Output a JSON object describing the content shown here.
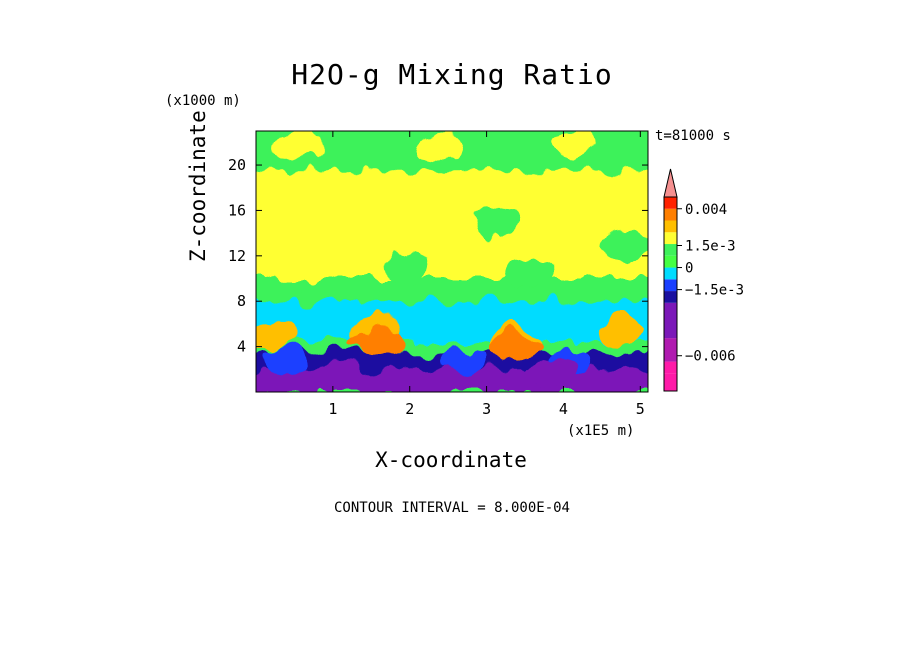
{
  "chart_data": {
    "type": "heatmap",
    "title": "H2O-g Mixing Ratio",
    "xlabel": "X-coordinate",
    "ylabel": "Z-coordinate",
    "x_unit": "(x1E5 m)",
    "y_unit": "(x1000 m)",
    "x_ticks": [
      1,
      2,
      3,
      4,
      5
    ],
    "y_ticks": [
      4,
      8,
      12,
      16,
      20
    ],
    "xlim": [
      0,
      5.1
    ],
    "ylim": [
      0,
      23
    ],
    "time_label": "t=81000 s",
    "contour_interval": "CONTOUR INTERVAL = 8.000E-04",
    "colorbar": {
      "labels": [
        "0.004",
        "1.5e-3",
        "0",
        "−1.5e-3",
        "−0.006"
      ],
      "label_values": [
        0.004,
        0.0015,
        0,
        -0.0015,
        -0.006
      ],
      "levels": [
        {
          "value": -0.0084,
          "color": "#ff1aa8"
        },
        {
          "value": -0.0072,
          "color": "#ff1aa8"
        },
        {
          "value": -0.0064,
          "color": "#b01ab0"
        },
        {
          "value": -0.0048,
          "color": "#7b18b8"
        },
        {
          "value": -0.0024,
          "color": "#1a10a0"
        },
        {
          "value": -0.0016,
          "color": "#1a40ff"
        },
        {
          "value": -0.0008,
          "color": "#00dcff"
        },
        {
          "value": 0.0,
          "color": "#44ff44"
        },
        {
          "value": 0.0008,
          "color": "#3ef25a"
        },
        {
          "value": 0.0016,
          "color": "#ffff33"
        },
        {
          "value": 0.0024,
          "color": "#ffbf00"
        },
        {
          "value": 0.0032,
          "color": "#ff7f00"
        },
        {
          "value": 0.004,
          "color": "#ff2200"
        },
        {
          "value": 0.0048,
          "color": "#f59090"
        }
      ]
    },
    "field_layers": [
      {
        "zmin": 18.0,
        "zmax": 23.0,
        "color": "#3ef25a"
      },
      {
        "zmin": 10.0,
        "zmax": 19.5,
        "color": "#ffff33"
      },
      {
        "zmin": 6.0,
        "zmax": 10.0,
        "color": "#3ef25a"
      },
      {
        "zmin": 4.5,
        "zmax": 8.0,
        "color": "#00dcff"
      },
      {
        "zmin": 1.5,
        "zmax": 3.5,
        "color": "#1a10a0"
      },
      {
        "zmin": 0.0,
        "zmax": 2.0,
        "color": "#7b18b8"
      }
    ],
    "features": [
      {
        "x": 0.6,
        "z": 21.8,
        "color": "#ffff33"
      },
      {
        "x": 2.4,
        "z": 21.6,
        "color": "#ffff33"
      },
      {
        "x": 4.2,
        "z": 21.8,
        "color": "#ffff33"
      },
      {
        "x": 0.3,
        "z": 9.0,
        "color": "#3ef25a"
      },
      {
        "x": 2.0,
        "z": 11.0,
        "color": "#3ef25a"
      },
      {
        "x": 3.6,
        "z": 10.5,
        "color": "#3ef25a"
      },
      {
        "x": 4.8,
        "z": 13.0,
        "color": "#3ef25a"
      },
      {
        "x": 3.1,
        "z": 15.0,
        "color": "#3ef25a"
      },
      {
        "x": 1.55,
        "z": 5.5,
        "color": "#ffbf00"
      },
      {
        "x": 1.6,
        "z": 4.4,
        "color": "#ff7f00"
      },
      {
        "x": 3.35,
        "z": 4.5,
        "color": "#ffbf00"
      },
      {
        "x": 3.35,
        "z": 4.0,
        "color": "#ff7f00"
      },
      {
        "x": 4.75,
        "z": 5.6,
        "color": "#ffbf00"
      },
      {
        "x": 0.2,
        "z": 5.0,
        "color": "#ffbf00"
      },
      {
        "x": 0.4,
        "z": 2.6,
        "color": "#1a40ff"
      },
      {
        "x": 2.7,
        "z": 2.8,
        "color": "#1a40ff"
      },
      {
        "x": 4.1,
        "z": 2.6,
        "color": "#1a40ff"
      },
      {
        "x": 3.9,
        "z": 1.8,
        "color": "#7b18b8"
      },
      {
        "x": 1.1,
        "z": 1.5,
        "color": "#7b18b8"
      }
    ]
  }
}
